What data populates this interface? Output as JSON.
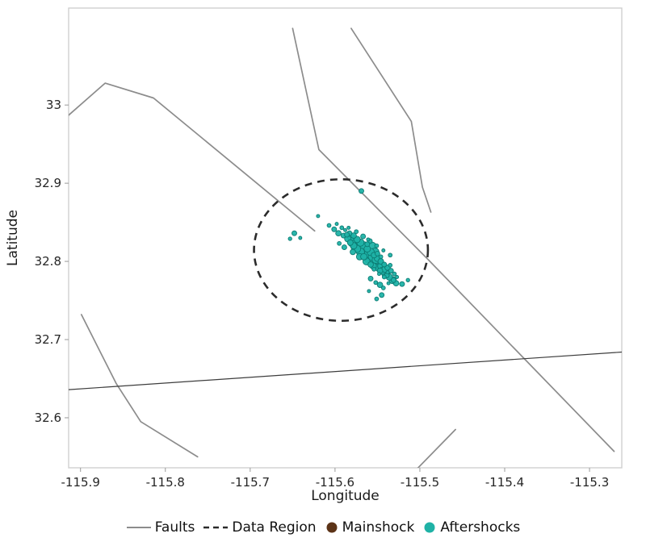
{
  "figure": {
    "background": "#ffffff"
  },
  "chart_data": {
    "type": "scatter",
    "title": "",
    "xlabel": "Longitude",
    "ylabel": "Latitude",
    "xlim": [
      -115.914,
      -115.262
    ],
    "ylim": [
      32.536,
      33.124
    ],
    "x_ticks": [
      -115.9,
      -115.8,
      -115.7,
      -115.6,
      -115.5,
      -115.4,
      -115.3
    ],
    "x_tick_labels": [
      "-115.9",
      "-115.8",
      "-115.7",
      "-115.6",
      "-115.5",
      "-115.4",
      "-115.3"
    ],
    "y_ticks": [
      32.6,
      32.7,
      32.8,
      32.9,
      33
    ],
    "y_tick_labels": [
      "32.6",
      "32.7",
      "32.8",
      "32.9",
      "33"
    ],
    "grid": false,
    "frame_color": "#cfcfcf",
    "tick_color": "#9a9a9a",
    "tick_label_color": "#262626",
    "faults": {
      "color": "#8c8c8c",
      "width": 1.7,
      "lines": [
        [
          [
            -115.914,
            32.987
          ],
          [
            -115.871,
            33.028
          ],
          [
            -115.814,
            33.009
          ],
          [
            -115.624,
            32.839
          ]
        ],
        [
          [
            -115.65,
            33.098
          ],
          [
            -115.619,
            32.943
          ],
          [
            -115.49,
            32.802
          ],
          [
            -115.271,
            32.557
          ]
        ],
        [
          [
            -115.581,
            33.098
          ],
          [
            -115.51,
            32.979
          ],
          [
            -115.497,
            32.895
          ],
          [
            -115.487,
            32.863
          ]
        ],
        [
          [
            -115.899,
            32.732
          ],
          [
            -115.858,
            32.644
          ],
          [
            -115.829,
            32.595
          ],
          [
            -115.762,
            32.55
          ]
        ],
        [
          [
            -115.503,
            32.535
          ],
          [
            -115.458,
            32.585
          ]
        ]
      ]
    },
    "boundary_line": {
      "color": "#3d3d3d",
      "width": 1.2,
      "points": [
        [
          -115.914,
          32.636
        ],
        [
          -115.262,
          32.684
        ]
      ]
    },
    "data_region": {
      "center": [
        -115.593,
        32.8145
      ],
      "rx": 0.1025,
      "ry": 0.0905,
      "color": "#2b2b2b",
      "dash": [
        9,
        7
      ],
      "width": 2.6
    },
    "mainshock": {
      "lon": -115.565,
      "lat": 32.814,
      "r": 7,
      "fill": "#5c3317",
      "stroke": "#35200e"
    },
    "aftershocks": {
      "fill": "#1fb2a6",
      "stroke": "#0c7a72",
      "points": [
        [
          -115.569,
          32.89,
          3
        ],
        [
          -115.648,
          32.836,
          3
        ],
        [
          -115.653,
          32.829,
          2.2
        ],
        [
          -115.641,
          32.83,
          2
        ],
        [
          -115.62,
          32.858,
          2
        ],
        [
          -115.521,
          32.771,
          3
        ],
        [
          -115.514,
          32.776,
          2.2
        ],
        [
          -115.545,
          32.757,
          3
        ],
        [
          -115.551,
          32.752,
          2.4
        ],
        [
          -115.56,
          32.762,
          2
        ],
        [
          -115.607,
          32.846,
          2.4
        ],
        [
          -115.601,
          32.841,
          3
        ],
        [
          -115.598,
          32.848,
          2
        ],
        [
          -115.596,
          32.836,
          3.4
        ],
        [
          -115.592,
          32.843,
          2.4
        ],
        [
          -115.59,
          32.833,
          3
        ],
        [
          -115.588,
          32.84,
          2
        ],
        [
          -115.585,
          32.829,
          4
        ],
        [
          -115.583,
          32.836,
          3
        ],
        [
          -115.58,
          32.824,
          5
        ],
        [
          -115.578,
          32.833,
          3.4
        ],
        [
          -115.576,
          32.82,
          6
        ],
        [
          -115.574,
          32.828,
          4
        ],
        [
          -115.572,
          32.816,
          5.5
        ],
        [
          -115.57,
          32.824,
          4.5
        ],
        [
          -115.568,
          32.812,
          6
        ],
        [
          -115.566,
          32.82,
          5
        ],
        [
          -115.564,
          32.808,
          5.5
        ],
        [
          -115.562,
          32.816,
          4
        ],
        [
          -115.56,
          32.804,
          6
        ],
        [
          -115.558,
          32.812,
          4.5
        ],
        [
          -115.556,
          32.8,
          5
        ],
        [
          -115.554,
          32.808,
          3.5
        ],
        [
          -115.552,
          32.796,
          5.5
        ],
        [
          -115.55,
          32.804,
          4
        ],
        [
          -115.548,
          32.792,
          5
        ],
        [
          -115.546,
          32.8,
          3.5
        ],
        [
          -115.544,
          32.788,
          4.5
        ],
        [
          -115.542,
          32.796,
          3
        ],
        [
          -115.54,
          32.784,
          5
        ],
        [
          -115.538,
          32.792,
          3.4
        ],
        [
          -115.536,
          32.78,
          4
        ],
        [
          -115.534,
          32.788,
          3
        ],
        [
          -115.532,
          32.776,
          4.4
        ],
        [
          -115.53,
          32.784,
          2.4
        ],
        [
          -115.528,
          32.772,
          3.4
        ],
        [
          -115.595,
          32.823,
          2.4
        ],
        [
          -115.589,
          32.818,
          3
        ],
        [
          -115.584,
          32.843,
          2
        ],
        [
          -115.579,
          32.812,
          3.4
        ],
        [
          -115.575,
          32.838,
          2.4
        ],
        [
          -115.571,
          32.806,
          4
        ],
        [
          -115.567,
          32.832,
          3
        ],
        [
          -115.563,
          32.8,
          4.4
        ],
        [
          -115.559,
          32.826,
          3
        ],
        [
          -115.555,
          32.794,
          4
        ],
        [
          -115.551,
          32.82,
          2.4
        ],
        [
          -115.547,
          32.788,
          3.4
        ],
        [
          -115.543,
          32.814,
          2
        ],
        [
          -115.539,
          32.782,
          3
        ],
        [
          -115.535,
          32.808,
          2.4
        ],
        [
          -115.531,
          32.776,
          3
        ],
        [
          -115.557,
          32.818,
          6.5
        ],
        [
          -115.553,
          32.812,
          5
        ],
        [
          -115.565,
          32.815,
          7
        ],
        [
          -115.573,
          32.822,
          6
        ],
        [
          -115.569,
          32.818,
          6.5
        ],
        [
          -115.577,
          32.827,
          5.5
        ],
        [
          -115.581,
          32.831,
          4.5
        ],
        [
          -115.549,
          32.798,
          6
        ],
        [
          -115.545,
          32.794,
          5
        ],
        [
          -115.541,
          32.79,
          4
        ],
        [
          -115.56,
          32.81,
          5.5
        ],
        [
          -115.556,
          32.806,
          5
        ],
        [
          -115.552,
          32.802,
          4.5
        ],
        [
          -115.57,
          32.812,
          5
        ],
        [
          -115.566,
          32.806,
          4
        ],
        [
          -115.574,
          32.816,
          4.5
        ],
        [
          -115.578,
          32.82,
          4
        ],
        [
          -115.582,
          32.824,
          3.5
        ],
        [
          -115.586,
          32.834,
          3
        ],
        [
          -115.562,
          32.822,
          3
        ],
        [
          -115.558,
          32.796,
          3.4
        ],
        [
          -115.55,
          32.81,
          3
        ],
        [
          -115.546,
          32.806,
          2.4
        ],
        [
          -115.542,
          32.78,
          2.4
        ],
        [
          -115.538,
          32.786,
          2
        ],
        [
          -115.554,
          32.79,
          2.4
        ],
        [
          -115.548,
          32.784,
          2
        ],
        [
          -115.558,
          32.778,
          3
        ],
        [
          -115.552,
          32.773,
          2.4
        ],
        [
          -115.547,
          32.77,
          3.4
        ],
        [
          -115.543,
          32.766,
          2.4
        ],
        [
          -115.537,
          32.772,
          2
        ],
        [
          -115.535,
          32.795,
          2.4
        ],
        [
          -115.527,
          32.78,
          2
        ],
        [
          -115.561,
          32.828,
          2
        ]
      ]
    }
  },
  "legend": {
    "items": [
      {
        "label": "Faults",
        "swatch": "line",
        "color": "#8c8c8c"
      },
      {
        "label": "Data Region",
        "swatch": "dashed-line",
        "color": "#2b2b2b"
      },
      {
        "label": "Mainshock",
        "swatch": "dot",
        "color": "#5c3317"
      },
      {
        "label": "Aftershocks",
        "swatch": "dot",
        "color": "#1fb2a6"
      }
    ]
  }
}
